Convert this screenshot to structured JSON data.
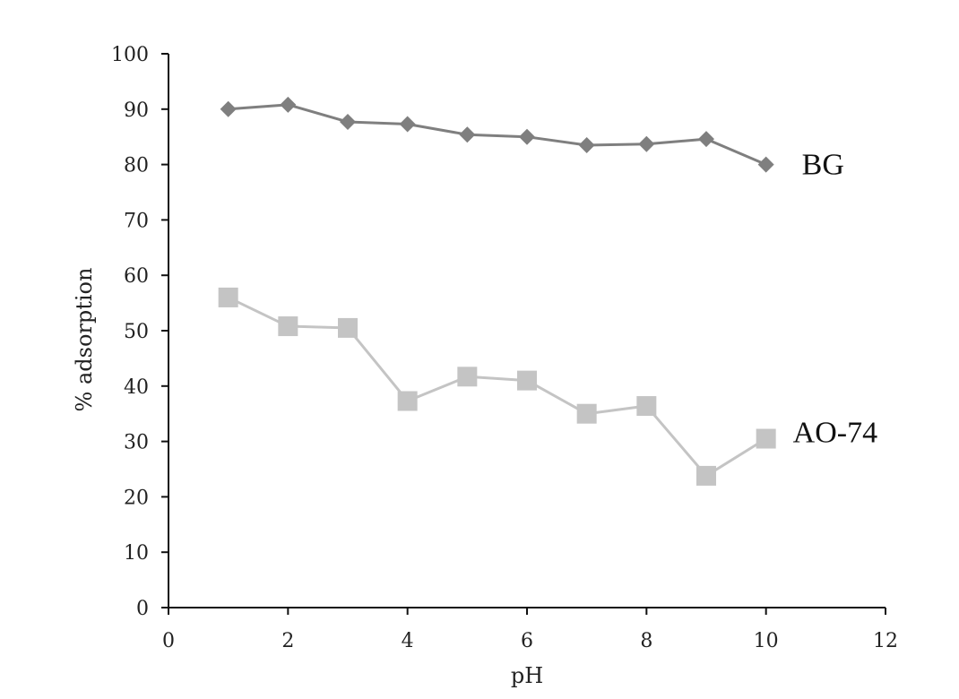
{
  "chart_data": {
    "type": "line",
    "title": "",
    "xlabel": "pH",
    "ylabel": "% adsorption",
    "xlim": [
      0,
      12
    ],
    "ylim": [
      0,
      100
    ],
    "xticks": [
      0,
      2,
      4,
      6,
      8,
      10,
      12
    ],
    "yticks": [
      0,
      10,
      20,
      30,
      40,
      50,
      60,
      70,
      80,
      90,
      100
    ],
    "grid": false,
    "legend": "none",
    "x": [
      1,
      2,
      3,
      4,
      5,
      6,
      7,
      8,
      9,
      10
    ],
    "series": [
      {
        "name": "BG",
        "marker": "diamond",
        "color": "#7f7f7f",
        "values": [
          90.0,
          90.8,
          87.7,
          87.3,
          85.4,
          85.0,
          83.5,
          83.7,
          84.6,
          80.0
        ]
      },
      {
        "name": "AO-74",
        "marker": "square",
        "color": "#c4c4c4",
        "values": [
          56.0,
          50.8,
          50.5,
          37.3,
          41.7,
          41.0,
          35.0,
          36.4,
          23.8,
          30.5
        ]
      }
    ]
  }
}
